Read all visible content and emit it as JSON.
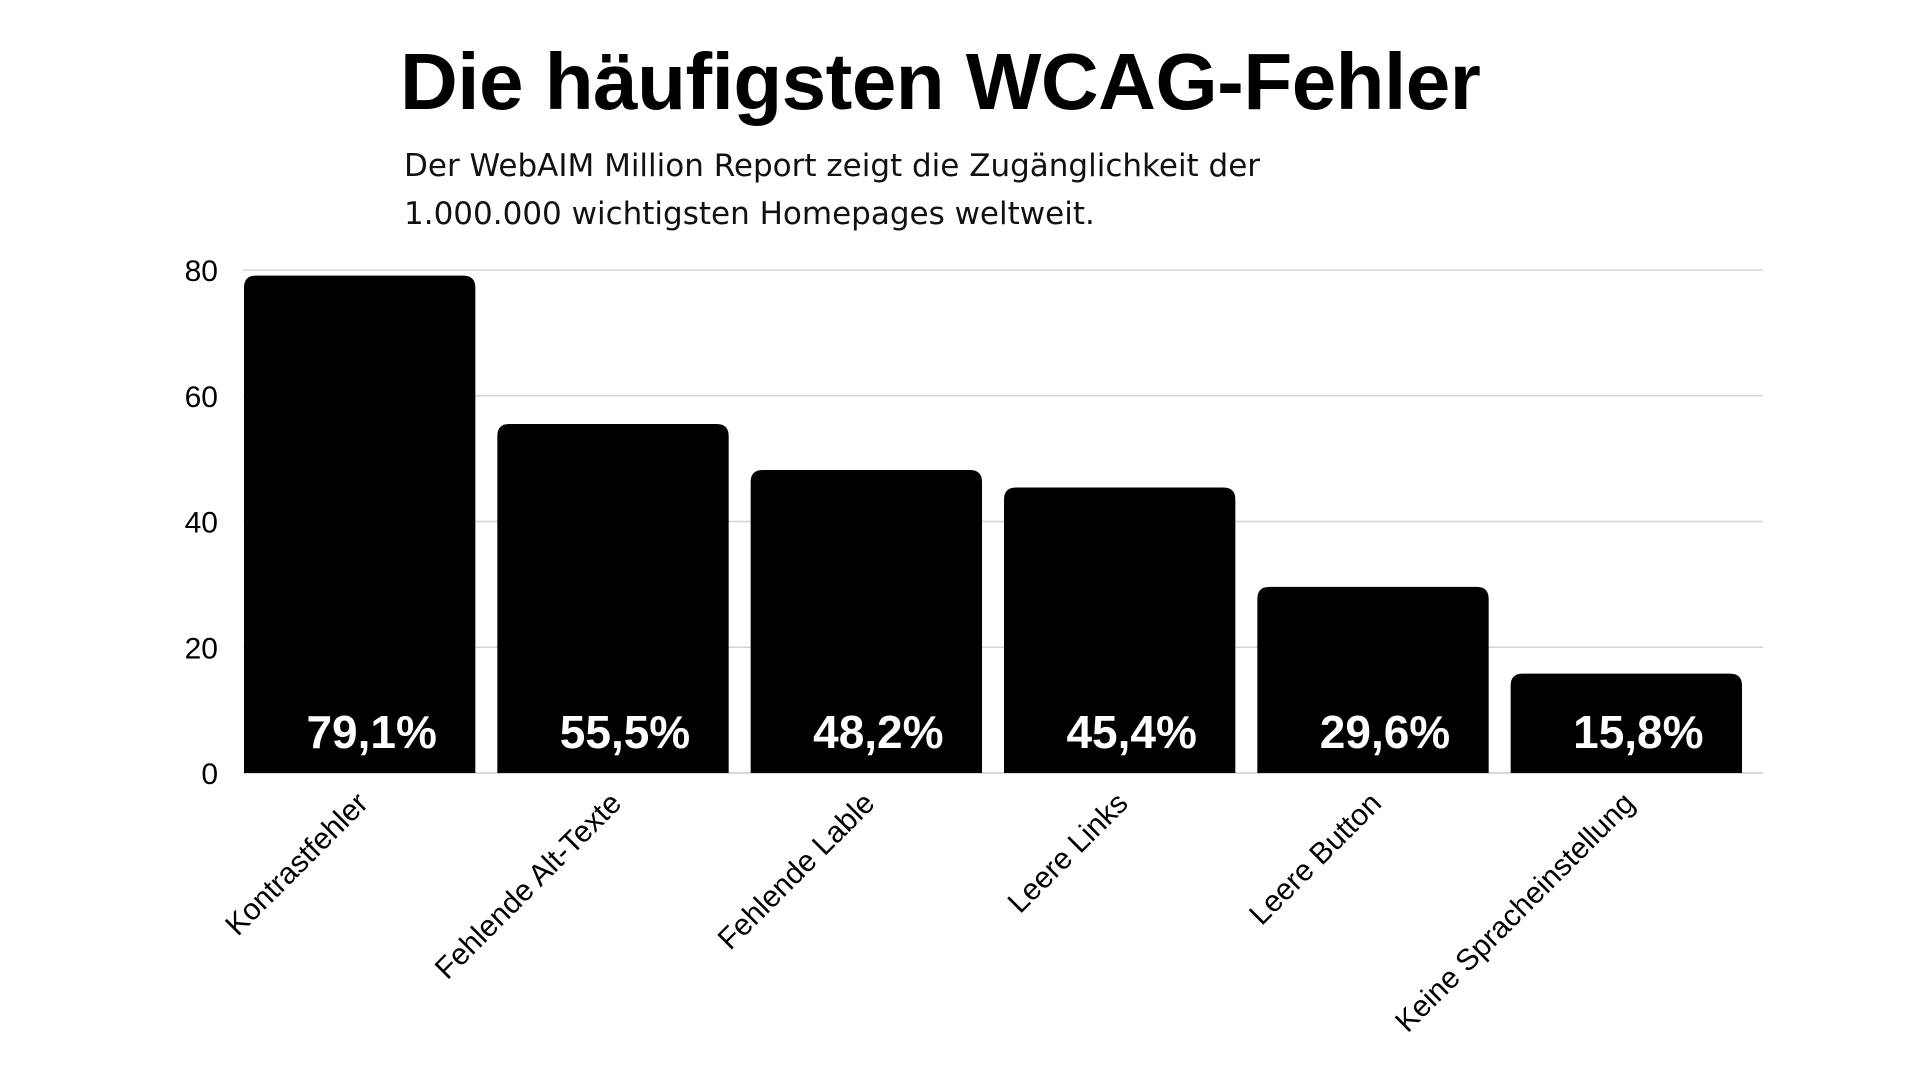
{
  "chart_data": {
    "type": "bar",
    "title": "Die häufigsten WCAG-Fehler",
    "subtitle": "Der WebAIM Million Report zeigt die Zugänglichkeit der 1.000.000 wichtigsten Homepages weltweit.",
    "categories": [
      "Kontrastfehler",
      "Fehlende Alt-Texte",
      "Fehlende Lable",
      "Leere Links",
      "Leere Button",
      "Keine Spracheinstellung"
    ],
    "values": [
      79.1,
      55.5,
      48.2,
      45.4,
      29.6,
      15.8
    ],
    "value_labels": [
      "79,1%",
      "55,5%",
      "48,2%",
      "45,4%",
      "29,6%",
      "15,8%"
    ],
    "yticks": [
      0,
      20,
      40,
      60,
      80
    ],
    "ylim": [
      0,
      80
    ],
    "xlabel": "",
    "ylabel": "",
    "grid": true,
    "bar_color": "#000000",
    "grid_color": "#d4d4d4",
    "label_color": "#ffffff"
  }
}
